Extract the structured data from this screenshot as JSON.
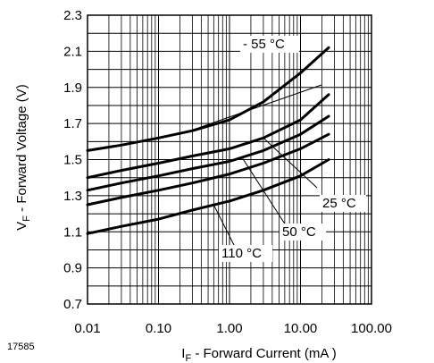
{
  "chart_data": {
    "type": "line",
    "xscale": "log",
    "xlim": [
      0.01,
      100
    ],
    "ylim": [
      0.7,
      2.3
    ],
    "x_ticks": [
      0.01,
      0.1,
      1,
      10,
      100
    ],
    "x_tick_labels": [
      "0.01",
      "0.10",
      "1.00",
      "10.00",
      "100.00"
    ],
    "y_ticks": [
      0.7,
      0.9,
      1.1,
      1.3,
      1.5,
      1.7,
      1.9,
      2.1,
      2.3
    ],
    "y_tick_labels": [
      "0.7",
      "0.9",
      "1.1",
      "1.3",
      "1.5",
      "1.7",
      "1.9",
      "2.1",
      "2.3"
    ],
    "xlabel": {
      "main": "I",
      "sub": "F",
      "rest": " - Forward Current (mA )"
    },
    "ylabel": {
      "main": "V",
      "sub": "F",
      "rest": " - Forward Voltage (V)"
    },
    "figure_id": "17585",
    "grid": true,
    "series": [
      {
        "name": "- 55 °C",
        "x": [
          0.01,
          0.03,
          0.1,
          0.3,
          1,
          3,
          10,
          25
        ],
        "y": [
          1.55,
          1.58,
          1.62,
          1.66,
          1.72,
          1.82,
          1.98,
          2.12
        ]
      },
      {
        "name": "25 °C",
        "x": [
          0.01,
          0.03,
          0.1,
          0.3,
          1,
          3,
          10,
          25
        ],
        "y": [
          1.4,
          1.44,
          1.48,
          1.52,
          1.56,
          1.62,
          1.72,
          1.86
        ]
      },
      {
        "name": "50 °C",
        "x": [
          0.01,
          0.03,
          0.1,
          0.3,
          1,
          3,
          10,
          25
        ],
        "y": [
          1.33,
          1.37,
          1.41,
          1.45,
          1.49,
          1.55,
          1.64,
          1.74
        ]
      },
      {
        "name": "",
        "x": [
          0.01,
          0.03,
          0.1,
          0.3,
          1,
          3,
          10,
          25
        ],
        "y": [
          1.25,
          1.29,
          1.33,
          1.37,
          1.42,
          1.48,
          1.56,
          1.64
        ]
      },
      {
        "name": "110 °C",
        "x": [
          0.01,
          0.03,
          0.1,
          0.3,
          1,
          3,
          10,
          25
        ],
        "y": [
          1.09,
          1.13,
          1.17,
          1.22,
          1.27,
          1.33,
          1.41,
          1.5
        ]
      }
    ],
    "annotations": [
      {
        "text": "- 55 °C",
        "series": 0
      },
      {
        "text": "25 °C",
        "series": 1
      },
      {
        "text": "50 °C",
        "series": 2
      },
      {
        "text": "110 °C",
        "series": 4
      }
    ]
  }
}
